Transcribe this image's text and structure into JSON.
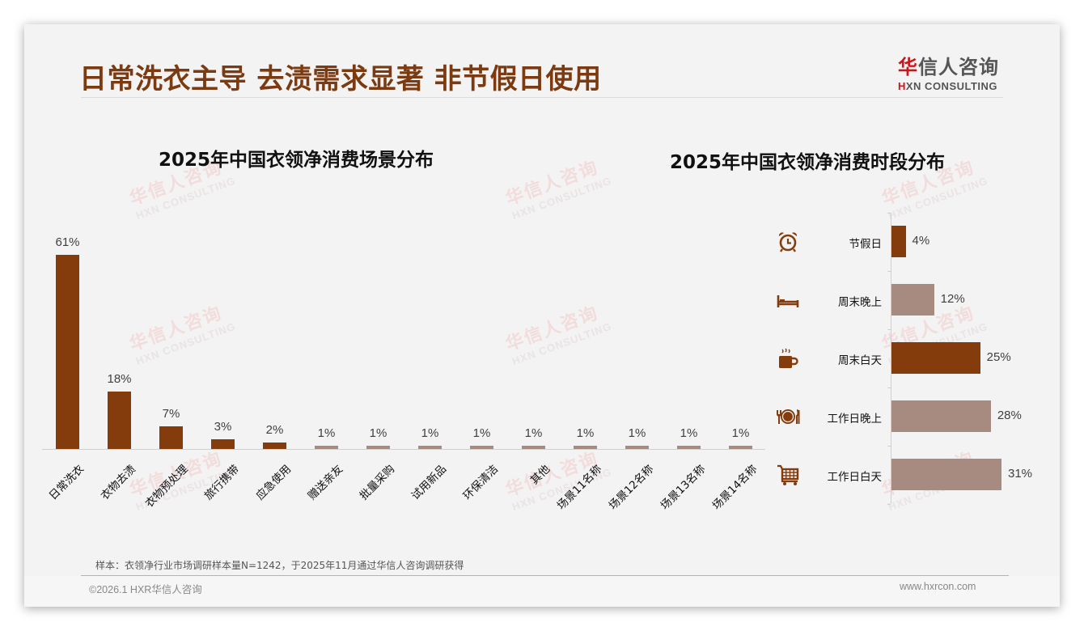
{
  "header": {
    "title": "日常洗衣主导 去渍需求显著 非节假日使用",
    "logo": {
      "cn_highlight": "华",
      "cn_rest": "信人咨询",
      "en_highlight": "H",
      "en_rest": "XN CONSULTING"
    }
  },
  "watermark": {
    "cn": "华信人咨询",
    "en": "HXN CONSULTING"
  },
  "colors": {
    "title": "#7b3a10",
    "bar_dark": "#843c0c",
    "bar_light": "#a88b80",
    "logo_red": "#c8161d"
  },
  "chart_data": [
    {
      "type": "bar",
      "title": "2025年中国衣领净消费场景分布",
      "xlabel": "",
      "ylabel": "",
      "categories": [
        "日常洗衣",
        "衣物去渍",
        "衣物预处理",
        "旅行携带",
        "应急使用",
        "赠送亲友",
        "批量采购",
        "试用新品",
        "环保清洁",
        "其他",
        "场景11名称",
        "场景12名称",
        "场景13名称",
        "场景14名称"
      ],
      "values": [
        61,
        18,
        7,
        3,
        2,
        1,
        1,
        1,
        1,
        1,
        1,
        1,
        1,
        1
      ],
      "value_labels": [
        "61%",
        "18%",
        "7%",
        "3%",
        "2%",
        "1%",
        "1%",
        "1%",
        "1%",
        "1%",
        "1%",
        "1%",
        "1%",
        "1%"
      ],
      "bar_colors": [
        "#843c0c",
        "#843c0c",
        "#843c0c",
        "#843c0c",
        "#843c0c",
        "#a88b80",
        "#a88b80",
        "#a88b80",
        "#a88b80",
        "#a88b80",
        "#a88b80",
        "#a88b80",
        "#a88b80",
        "#a88b80"
      ],
      "unit": "%",
      "grid": false,
      "ylim": [
        0,
        61
      ]
    },
    {
      "type": "bar",
      "orientation": "horizontal",
      "title": "2025年中国衣领净消费时段分布",
      "xlabel": "",
      "ylabel": "",
      "categories": [
        "节假日",
        "周末晚上",
        "周末白天",
        "工作日晚上",
        "工作日白天"
      ],
      "values": [
        4,
        12,
        25,
        28,
        31
      ],
      "value_labels": [
        "4%",
        "12%",
        "25%",
        "28%",
        "31%"
      ],
      "icons": [
        "alarm-clock-icon",
        "bed-icon",
        "coffee-cup-icon",
        "dining-plate-icon",
        "shopping-cart-icon"
      ],
      "bar_colors": [
        "#843c0c",
        "#a88b80",
        "#843c0c",
        "#a88b80",
        "#a88b80"
      ],
      "unit": "%",
      "grid": false
    }
  ],
  "footer": {
    "note": "样本：衣领净行业市场调研样本量N=1242，于2025年11月通过华信人咨询调研获得",
    "copyright": "©2026.1 HXR华信人咨询",
    "website": "www.hxrcon.com"
  }
}
